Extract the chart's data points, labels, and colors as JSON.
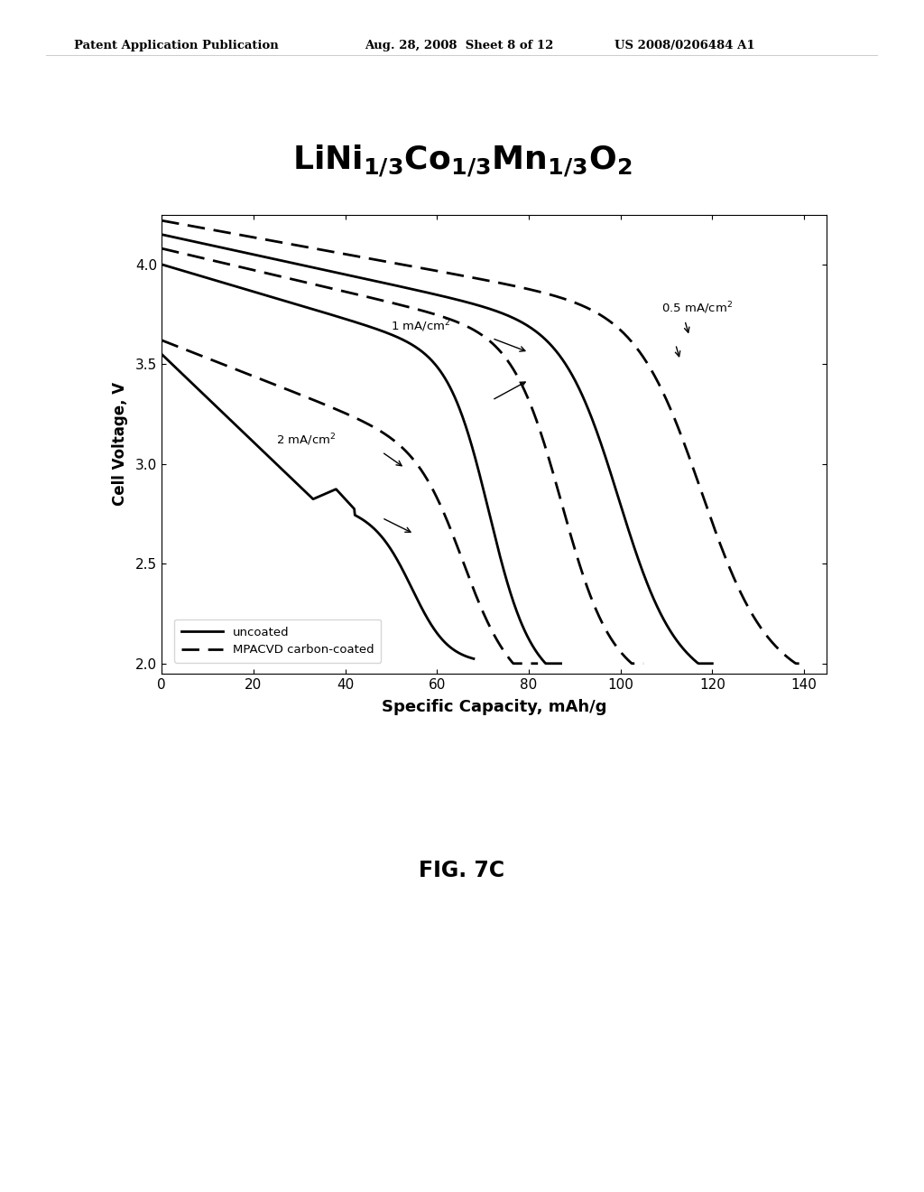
{
  "title": "LiNi$_{1/3}$Co$_{1/3}$Mn$_{1/3}$O$_2$",
  "xlabel": "Specific Capacity, mAh/g",
  "ylabel": "Cell Voltage, V",
  "xlim": [
    0,
    145
  ],
  "ylim": [
    1.95,
    4.25
  ],
  "xticks": [
    0,
    20,
    40,
    60,
    80,
    100,
    120,
    140
  ],
  "yticks": [
    2.0,
    2.5,
    3.0,
    3.5,
    4.0
  ],
  "header_left": "Patent Application Publication",
  "header_mid": "Aug. 28, 2008  Sheet 8 of 12",
  "header_right": "US 2008/0206484 A1",
  "footer": "FIG. 7C",
  "legend_solid": "uncoated",
  "legend_dashed": "MPACVD carbon-coated",
  "background": "#ffffff",
  "line_color": "#000000",
  "lw": 2.0
}
